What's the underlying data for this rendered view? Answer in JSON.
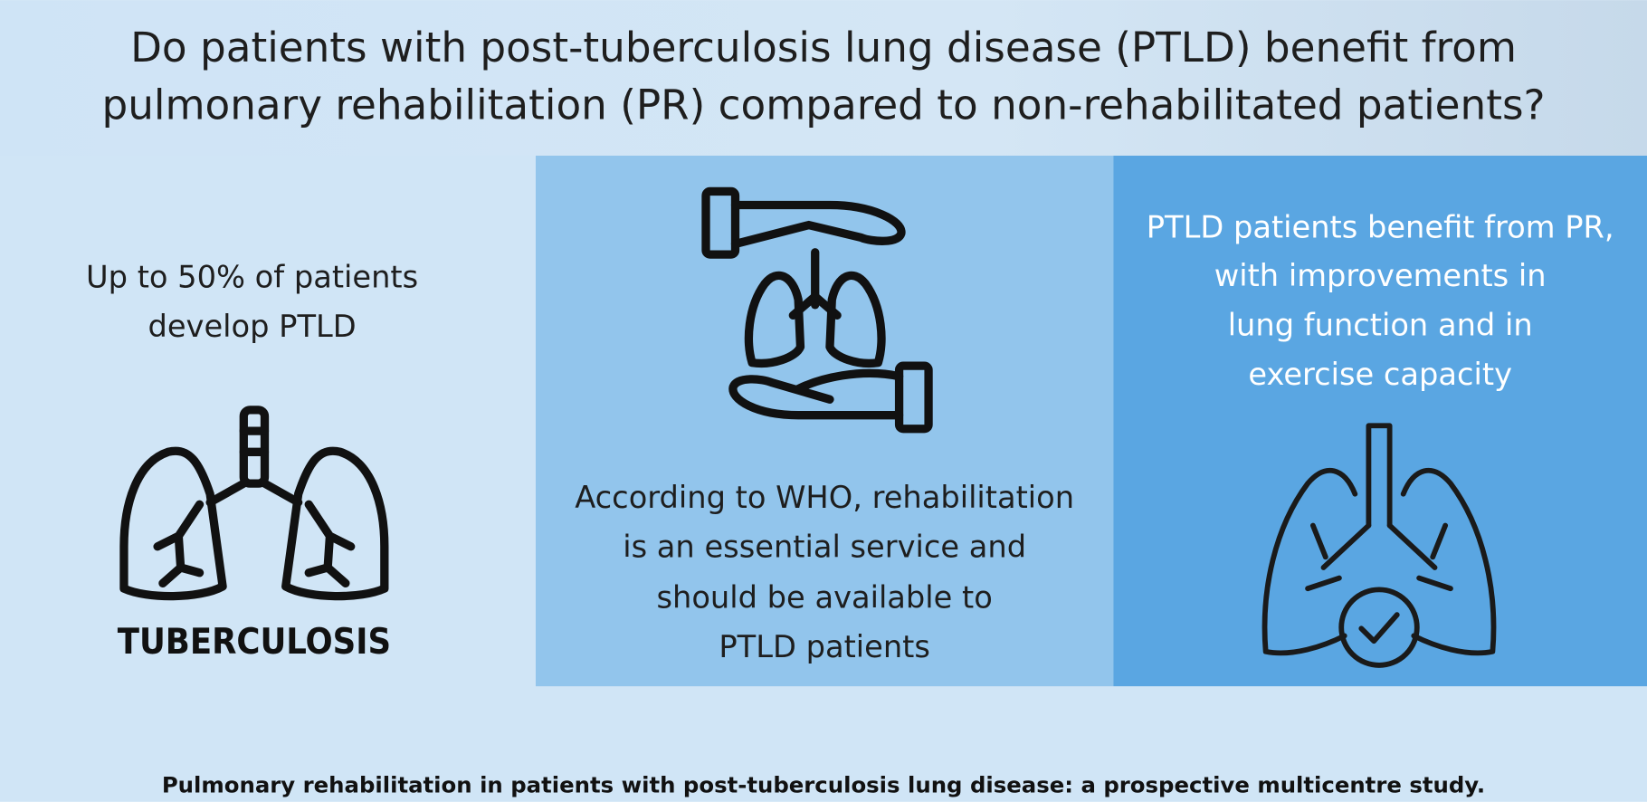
{
  "title": [
    "Do patients with post-tuberculosis lung disease (PTLD) benefit from",
    "pulmonary rehabilitation (PR) compared to non-rehabilitated patients?"
  ],
  "panels": [
    {
      "text": [
        "Up to 50% of patients",
        "develop PTLD"
      ],
      "icon_label": "TUBERCULOSIS"
    },
    {
      "text": [
        "According to WHO, rehabilitation",
        "is an essential service and",
        "should be available to",
        "PTLD patients"
      ]
    },
    {
      "text": [
        "PTLD patients benefit from PR,",
        "with improvements in",
        "lung function and in",
        "exercise capacity"
      ]
    }
  ],
  "footer": "Pulmonary rehabilitation in patients with post-tuberculosis lung disease: a prospective multicentre study."
}
